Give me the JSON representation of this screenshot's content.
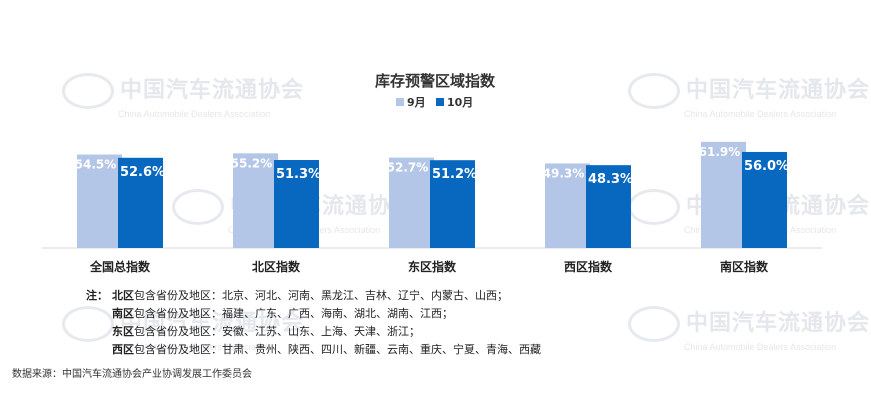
{
  "watermark": {
    "text": "中国汽车流通协会",
    "sub": "China Automobile Dealers Association"
  },
  "colors": {
    "sep": "#b4c6e7",
    "oct": "#0868bf",
    "axis": "#d9d9d9"
  },
  "chart_data": {
    "type": "bar",
    "title": "库存预警区域指数",
    "categories": [
      "全国总指数",
      "北区指数",
      "东区指数",
      "西区指数",
      "南区指数"
    ],
    "series": [
      {
        "name": "9月",
        "values": [
          54.5,
          55.2,
          52.7,
          49.3,
          61.9
        ],
        "labels": [
          "54.5%",
          "55.2%",
          "52.7%",
          "49.3%",
          "61.9%"
        ]
      },
      {
        "name": "10月",
        "values": [
          52.6,
          51.3,
          51.2,
          48.3,
          56.0
        ],
        "labels": [
          "52.6%",
          "51.3%",
          "51.2%",
          "48.3%",
          "56.0%"
        ]
      }
    ],
    "legend_position": "top-center",
    "grid": false
  },
  "notes": {
    "prefix": "注：",
    "items": [
      {
        "region": "北区",
        "text": "包含省份及地区：北京、河北、河南、黑龙江、吉林、辽宁、内蒙古、山西；"
      },
      {
        "region": "南区",
        "text": "包含省份及地区：福建、广东、广西、海南、湖北、湖南、江西；"
      },
      {
        "region": "东区",
        "text": "包含省份及地区：安徽、江苏、山东、上海、天津、浙江；"
      },
      {
        "region": "西区",
        "text": "包含省份及地区：甘肃、贵州、陕西、四川、新疆、云南、重庆、宁夏、青海、西藏"
      }
    ]
  },
  "source": "数据来源：中国汽车流通协会产业协调发展工作委员会"
}
